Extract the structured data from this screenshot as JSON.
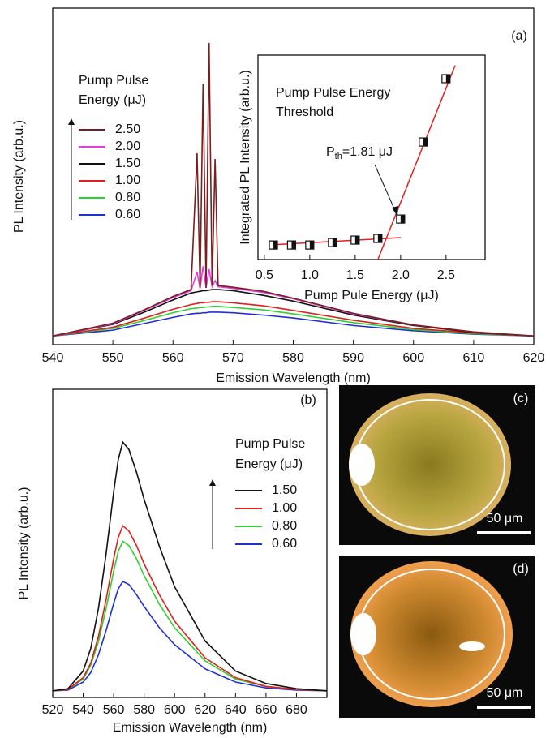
{
  "chart_data": [
    {
      "type": "line",
      "panel_label": "(a)",
      "x_label": "Emission Wavelength (nm)",
      "y_label": "PL Intensity (arb.u.)",
      "legend_title": [
        "Pump Pulse",
        "Energy (μJ)"
      ],
      "xlim": [
        540,
        620
      ],
      "xticks": [
        540,
        550,
        560,
        570,
        580,
        590,
        600,
        610,
        620
      ],
      "ylim": [
        0,
        5.8
      ],
      "x": [
        540,
        550,
        555,
        560,
        563,
        564,
        564.5,
        565,
        565.5,
        566,
        566.5,
        567,
        567.5,
        570,
        575,
        580,
        590,
        600,
        610,
        620
      ],
      "series": [
        {
          "name": "2.50",
          "color": "#7a1f1f",
          "values": [
            0.15,
            0.37,
            0.59,
            0.83,
            0.95,
            3.3,
            0.98,
            4.5,
            0.98,
            5.2,
            1.02,
            3.2,
            1.02,
            0.99,
            0.92,
            0.8,
            0.54,
            0.34,
            0.22,
            0.15
          ]
        },
        {
          "name": "2.00",
          "color": "#e040e0",
          "values": [
            0.15,
            0.36,
            0.58,
            0.81,
            0.93,
            1.25,
            0.97,
            1.35,
            0.98,
            1.3,
            1.0,
            1.1,
            1.0,
            0.97,
            0.9,
            0.79,
            0.53,
            0.34,
            0.22,
            0.15
          ]
        },
        {
          "name": "1.50",
          "color": "#111111",
          "values": [
            0.15,
            0.35,
            0.55,
            0.77,
            0.89,
            0.91,
            0.92,
            0.93,
            0.93,
            0.94,
            0.95,
            0.95,
            0.95,
            0.93,
            0.85,
            0.75,
            0.51,
            0.33,
            0.21,
            0.15
          ]
        },
        {
          "name": "1.00",
          "color": "#e02020",
          "values": [
            0.15,
            0.3,
            0.45,
            0.61,
            0.69,
            0.71,
            0.72,
            0.72,
            0.73,
            0.73,
            0.74,
            0.74,
            0.74,
            0.72,
            0.67,
            0.59,
            0.42,
            0.28,
            0.2,
            0.15
          ]
        },
        {
          "name": "0.80",
          "color": "#30d030",
          "values": [
            0.15,
            0.28,
            0.41,
            0.55,
            0.62,
            0.63,
            0.64,
            0.64,
            0.65,
            0.65,
            0.66,
            0.66,
            0.66,
            0.64,
            0.6,
            0.53,
            0.38,
            0.26,
            0.19,
            0.15
          ]
        },
        {
          "name": "0.60",
          "color": "#2030d0",
          "values": [
            0.15,
            0.25,
            0.36,
            0.47,
            0.53,
            0.54,
            0.54,
            0.55,
            0.55,
            0.56,
            0.56,
            0.56,
            0.56,
            0.55,
            0.51,
            0.46,
            0.33,
            0.24,
            0.18,
            0.15
          ]
        }
      ]
    },
    {
      "type": "scatter",
      "x_label": "Pump Pule Energy (μJ)",
      "y_label": "Integrated PL Intensity (arb.u.)",
      "annotation": [
        "Pump Pulse Energy",
        "Threshold"
      ],
      "threshold_label": {
        "base": "P",
        "sub": "th",
        "rest": "=1.81 μJ"
      },
      "xlim": [
        0.43,
        2.93
      ],
      "xticks": [
        0.5,
        {
          "value": 1,
          "label": "1.0"
        },
        1.5,
        {
          "value": 2,
          "label": "2.0"
        },
        2.5
      ],
      "ylim": [
        0,
        10
      ],
      "x": [
        0.6,
        0.8,
        1.0,
        1.25,
        1.5,
        1.75,
        2.0,
        2.25,
        2.5
      ],
      "values": [
        0.71,
        0.71,
        0.71,
        0.83,
        0.95,
        1.03,
        1.98,
        5.75,
        8.85
      ],
      "fit_color": "#e02020",
      "fit_lines": [
        {
          "x": [
            0.55,
            2.0
          ],
          "values": [
            0.71,
            1.07
          ]
        },
        {
          "x": [
            1.75,
            2.6
          ],
          "values": [
            0,
            9.5
          ]
        }
      ]
    },
    {
      "type": "line",
      "panel_label": "(b)",
      "x_label": "Emission Wavelength (nm)",
      "y_label": "PL Intensity (arb.u.)",
      "legend_title": [
        "Pump Pulse",
        "Energy (μJ)"
      ],
      "xlim": [
        520,
        700
      ],
      "xticks": [
        520,
        540,
        560,
        580,
        600,
        620,
        640,
        660,
        680
      ],
      "ylim": [
        0,
        4.2
      ],
      "x": [
        520,
        530,
        540,
        545,
        550,
        555,
        560,
        563,
        566,
        570,
        575,
        580,
        590,
        600,
        620,
        640,
        660,
        680,
        700
      ],
      "series": [
        {
          "name": "1.50",
          "color": "#111111",
          "values": [
            0.09,
            0.12,
            0.36,
            0.67,
            1.21,
            1.95,
            2.8,
            3.24,
            3.48,
            3.38,
            3.07,
            2.7,
            2.06,
            1.51,
            0.77,
            0.36,
            0.19,
            0.12,
            0.09
          ]
        },
        {
          "name": "1.00",
          "color": "#e02020",
          "values": [
            0.09,
            0.11,
            0.27,
            0.47,
            0.83,
            1.33,
            1.89,
            2.18,
            2.34,
            2.27,
            2.07,
            1.82,
            1.4,
            1.04,
            0.54,
            0.27,
            0.15,
            0.11,
            0.09
          ]
        },
        {
          "name": "0.80",
          "color": "#30d030",
          "values": [
            0.09,
            0.11,
            0.25,
            0.44,
            0.76,
            1.21,
            1.72,
            1.99,
            2.13,
            2.07,
            1.89,
            1.66,
            1.27,
            0.95,
            0.5,
            0.25,
            0.15,
            0.11,
            0.09
          ]
        },
        {
          "name": "0.60",
          "color": "#2030d0",
          "values": [
            0.09,
            0.1,
            0.21,
            0.34,
            0.58,
            0.91,
            1.28,
            1.48,
            1.58,
            1.54,
            1.4,
            1.24,
            0.95,
            0.72,
            0.39,
            0.21,
            0.13,
            0.1,
            0.09
          ]
        }
      ]
    }
  ],
  "images": [
    {
      "label": "(c)",
      "scale": "50 μm"
    },
    {
      "label": "(d)",
      "scale": "50 μm"
    }
  ]
}
